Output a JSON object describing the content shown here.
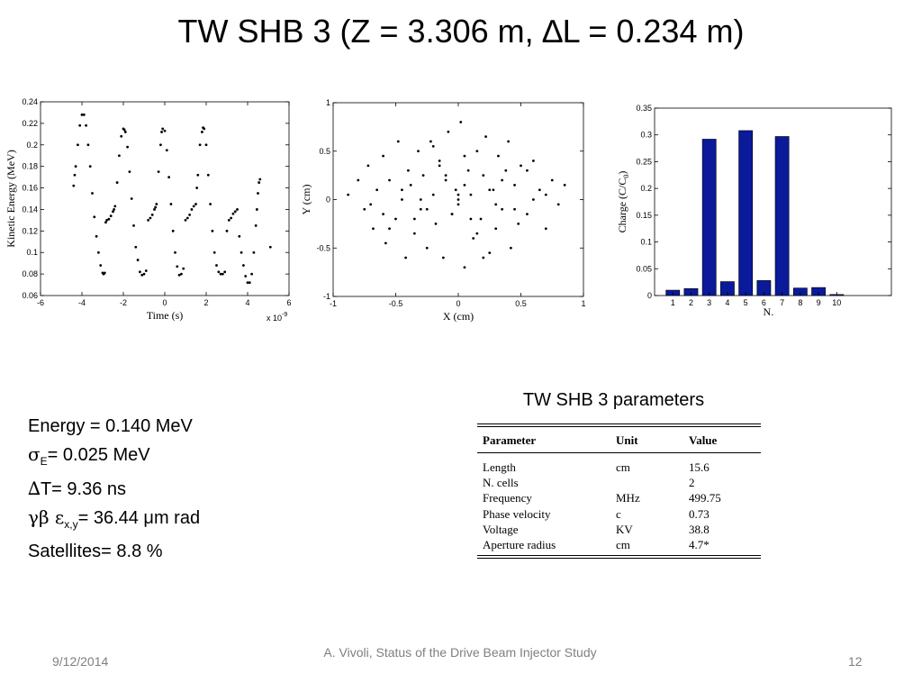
{
  "slide": {
    "title": "TW SHB 3 (Z = 3.306 m, ∆L = 0.234 m)",
    "stats": {
      "energy": "Energy = 0.140 MeV",
      "sigma_sym": "σ",
      "sigma_sub": "E",
      "sigma_rest": "= 0.025 MeV",
      "dt_sym": "∆",
      "dt_rest": "T= 9.36 ns",
      "emit_sym": "γβ ε",
      "emit_sub": "x,y",
      "emit_rest": "= 36.44 μm rad",
      "satellites": "Satellites= 8.8 %"
    },
    "params": {
      "title": "TW SHB 3 parameters",
      "headers": [
        "Parameter",
        "Unit",
        "Value"
      ],
      "rows": [
        [
          "Length",
          "cm",
          "15.6"
        ],
        [
          "N. cells",
          "",
          "2"
        ],
        [
          "Frequency",
          "MHz",
          "499.75"
        ],
        [
          "Phase velocity",
          "c",
          "0.73"
        ],
        [
          "Voltage",
          "KV",
          "38.8"
        ],
        [
          "Aperture radius",
          "cm",
          "4.7*"
        ]
      ]
    },
    "footer": {
      "date": "9/12/2014",
      "center": "A. Vivoli, Status of the Drive Beam Injector Study",
      "page": "12"
    }
  },
  "chart_data": [
    {
      "type": "scatter",
      "title": "",
      "xlabel": "Time  (s)",
      "ylabel": "Kinetic Energy  (MeV)",
      "x_multiplier_label": "x 10",
      "x_multiplier_exp": "-9",
      "xlim": [
        -6,
        6
      ],
      "ylim": [
        0.06,
        0.24
      ],
      "xticks": [
        -6,
        -4,
        -2,
        0,
        2,
        4,
        6
      ],
      "xtick_labels": [
        "-6",
        "-4",
        "-2",
        "0",
        "2",
        "4",
        "6"
      ],
      "yticks": [
        0.06,
        0.08,
        0.1,
        0.12,
        0.14,
        0.16,
        0.18,
        0.2,
        0.22,
        0.24
      ],
      "ytick_labels": [
        "0.06",
        "0.08",
        "0.1",
        "0.12",
        "0.14",
        "0.16",
        "0.18",
        "0.2",
        "0.22",
        "0.24"
      ],
      "series": [
        {
          "x": [
            -4.4,
            -4.35,
            -4.3,
            -4.2,
            -4.1,
            -4.0,
            -3.9,
            -3.8,
            -3.7,
            -3.6,
            -3.5,
            -3.4,
            -3.3,
            -3.2,
            -3.1,
            -3.0,
            -2.95,
            -2.9,
            -2.85,
            -2.8,
            -2.7,
            -2.6,
            -2.5,
            -2.45,
            -2.4,
            -2.3,
            -2.2,
            -2.1,
            -2.0,
            -1.95,
            -1.9,
            -1.8,
            -1.7,
            -1.6,
            -1.5,
            -1.4,
            -1.3,
            -1.2,
            -1.1,
            -1.0,
            -0.9,
            -0.8,
            -0.7,
            -0.6,
            -0.5,
            -0.45,
            -0.4,
            -0.3,
            -0.2,
            -0.15,
            -0.1,
            0.0,
            0.1,
            0.2,
            0.3,
            0.4,
            0.5,
            0.6,
            0.7,
            0.8,
            0.9,
            1.0,
            1.1,
            1.2,
            1.3,
            1.4,
            1.5,
            1.55,
            1.6,
            1.7,
            1.8,
            1.85,
            1.9,
            2.0,
            2.1,
            2.2,
            2.3,
            2.4,
            2.5,
            2.6,
            2.7,
            2.8,
            2.9,
            3.0,
            3.1,
            3.2,
            3.3,
            3.4,
            3.5,
            3.6,
            3.7,
            3.8,
            3.9,
            4.0,
            4.1,
            4.2,
            4.3,
            4.4,
            4.45,
            4.5,
            4.55,
            4.6,
            5.1
          ],
          "y": [
            0.162,
            0.172,
            0.18,
            0.2,
            0.218,
            0.228,
            0.228,
            0.218,
            0.2,
            0.18,
            0.155,
            0.133,
            0.115,
            0.1,
            0.088,
            0.081,
            0.08,
            0.081,
            0.128,
            0.13,
            0.131,
            0.134,
            0.138,
            0.14,
            0.143,
            0.165,
            0.19,
            0.208,
            0.215,
            0.214,
            0.212,
            0.198,
            0.175,
            0.15,
            0.125,
            0.105,
            0.093,
            0.082,
            0.079,
            0.08,
            0.083,
            0.13,
            0.132,
            0.135,
            0.14,
            0.142,
            0.145,
            0.175,
            0.2,
            0.212,
            0.215,
            0.213,
            0.195,
            0.17,
            0.145,
            0.12,
            0.1,
            0.087,
            0.079,
            0.08,
            0.085,
            0.13,
            0.132,
            0.135,
            0.14,
            0.143,
            0.145,
            0.16,
            0.172,
            0.2,
            0.212,
            0.216,
            0.215,
            0.2,
            0.172,
            0.145,
            0.12,
            0.1,
            0.088,
            0.082,
            0.08,
            0.08,
            0.082,
            0.12,
            0.13,
            0.132,
            0.136,
            0.138,
            0.14,
            0.115,
            0.1,
            0.088,
            0.078,
            0.072,
            0.072,
            0.08,
            0.1,
            0.125,
            0.14,
            0.155,
            0.165,
            0.168,
            0.105
          ]
        }
      ]
    },
    {
      "type": "scatter",
      "title": "",
      "xlabel": "X  (cm)",
      "ylabel": "Y  (cm)",
      "xlim": [
        -1,
        1
      ],
      "ylim": [
        -1,
        1
      ],
      "xticks": [
        -1,
        -0.5,
        0,
        0.5,
        1
      ],
      "xtick_labels": [
        "-1",
        "-0.5",
        "0",
        "0.5",
        "1"
      ],
      "yticks": [
        -1,
        -0.5,
        0,
        0.5,
        1
      ],
      "ytick_labels": [
        "-1",
        "-0.5",
        "0",
        "0.5",
        "1"
      ],
      "series": [
        {
          "x": [
            -0.88,
            -0.8,
            -0.75,
            -0.72,
            -0.68,
            -0.65,
            -0.6,
            -0.58,
            -0.55,
            -0.5,
            -0.48,
            -0.45,
            -0.42,
            -0.4,
            -0.38,
            -0.35,
            -0.32,
            -0.3,
            -0.28,
            -0.25,
            -0.22,
            -0.2,
            -0.18,
            -0.15,
            -0.12,
            -0.1,
            -0.08,
            -0.05,
            -0.02,
            0.0,
            0.02,
            0.05,
            0.08,
            0.1,
            0.12,
            0.15,
            0.18,
            0.2,
            0.22,
            0.25,
            0.28,
            0.3,
            0.32,
            0.35,
            0.38,
            0.4,
            0.42,
            0.45,
            0.48,
            0.5,
            0.55,
            0.6,
            0.65,
            0.7,
            0.75,
            0.8,
            0.85,
            -0.6,
            -0.3,
            0.0,
            0.3,
            0.6,
            -0.45,
            0.45,
            -0.15,
            0.15,
            -0.7,
            0.7,
            -0.2,
            0.2,
            0.05,
            -0.05,
            0.1,
            -0.1,
            0.0,
            0.25,
            -0.25,
            0.35,
            -0.35,
            0.55,
            -0.55,
            0.05
          ],
          "y": [
            0.05,
            0.2,
            -0.1,
            0.35,
            -0.3,
            0.1,
            0.45,
            -0.45,
            0.2,
            -0.2,
            0.6,
            0.0,
            -0.6,
            0.3,
            0.15,
            -0.35,
            0.5,
            -0.1,
            0.25,
            -0.5,
            0.6,
            0.05,
            -0.25,
            0.4,
            -0.6,
            0.2,
            0.7,
            -0.15,
            0.1,
            -0.05,
            0.8,
            -0.7,
            0.3,
            0.05,
            -0.4,
            0.5,
            -0.2,
            0.25,
            0.65,
            -0.55,
            0.1,
            -0.3,
            0.45,
            -0.1,
            0.3,
            0.6,
            -0.5,
            0.15,
            -0.25,
            0.35,
            -0.15,
            0.4,
            0.1,
            -0.3,
            0.2,
            -0.05,
            0.15,
            -0.15,
            0.0,
            0.05,
            -0.05,
            0.0,
            0.1,
            -0.1,
            0.35,
            -0.35,
            -0.05,
            0.05,
            0.55,
            -0.6,
            0.15,
            -0.15,
            -0.2,
            0.25,
            0.0,
            0.1,
            -0.1,
            0.2,
            -0.2,
            0.3,
            -0.3,
            0.45
          ]
        }
      ]
    },
    {
      "type": "bar",
      "title": "",
      "xlabel": "N.",
      "ylabel": "Charge (C/C",
      "ylabel_sub": "0",
      "ylabel_end": ")",
      "categories": [
        "1",
        "2",
        "3",
        "4",
        "5",
        "6",
        "7",
        "8",
        "9",
        "10"
      ],
      "values": [
        0.01,
        0.013,
        0.292,
        0.026,
        0.308,
        0.028,
        0.297,
        0.014,
        0.015,
        0.002
      ],
      "ylim": [
        0,
        0.35
      ],
      "yticks": [
        0,
        0.05,
        0.1,
        0.15,
        0.2,
        0.25,
        0.3,
        0.35
      ],
      "ytick_labels": [
        "0",
        "0.05",
        "0.1",
        "0.15",
        "0.2",
        "0.25",
        "0.3",
        "0.35"
      ],
      "bar_color": "#0a1a9a"
    }
  ]
}
